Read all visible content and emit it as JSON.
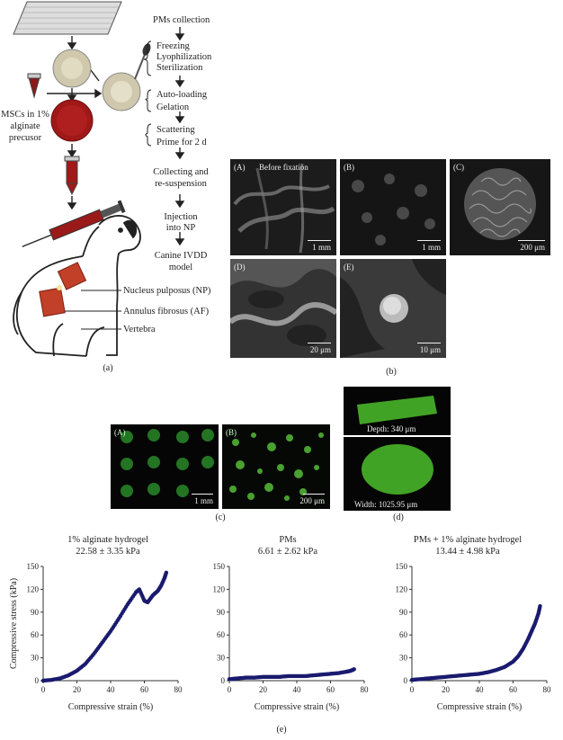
{
  "panel_a": {
    "label": "(a)",
    "steps": [
      "PMs collection",
      "Freezing",
      "Lyophilization",
      "Sterilization",
      "Auto-loading",
      "Gelation",
      "Scattering",
      "Prime for 2 d",
      "Collecting and",
      "re-suspension",
      "Injection",
      "into NP",
      "Canine IVDD",
      "model"
    ],
    "msc_text": [
      "MSCs in 1%",
      "alginate",
      "precusor"
    ],
    "anatomy": [
      "Nucleus pulposus (NP)",
      "Annulus fibrosus (AF)",
      "Vertebra"
    ]
  },
  "panel_b": {
    "label": "(b)",
    "images": [
      {
        "tag": "(A)",
        "title": "Before fixation",
        "scale": "1 mm"
      },
      {
        "tag": "(B)",
        "title": "",
        "scale": "1 mm"
      },
      {
        "tag": "(C)",
        "title": "",
        "scale": "200 μm"
      },
      {
        "tag": "(D)",
        "title": "",
        "scale": "20 μm"
      },
      {
        "tag": "(E)",
        "title": "",
        "scale": "10 μm"
      }
    ]
  },
  "panel_c": {
    "label": "(c)",
    "images": [
      {
        "tag": "(A)",
        "scale": "1 mm"
      },
      {
        "tag": "(B)",
        "scale": "200 μm"
      }
    ]
  },
  "panel_d": {
    "label": "(d)",
    "depth": "Depth: 340 μm",
    "width": "Width: 1025.95 μm"
  },
  "panel_e": {
    "label": "(e)"
  },
  "chart_data": [
    {
      "type": "scatter",
      "title": "1% alginate hydrogel",
      "subtitle": "22.58 ± 3.35 kPa",
      "xlabel": "Compressive strain (%)",
      "ylabel": "Compressive stress (kPa)",
      "xlim": [
        0,
        80
      ],
      "ylim": [
        0,
        150
      ],
      "xticks": [
        0,
        20,
        40,
        60,
        80
      ],
      "yticks": [
        0,
        30,
        60,
        90,
        120,
        150
      ],
      "color": "#1a1a6e",
      "x": [
        0,
        5,
        10,
        15,
        20,
        25,
        30,
        35,
        40,
        45,
        50,
        55,
        57,
        60,
        62,
        65,
        68,
        70,
        72,
        73
      ],
      "y": [
        0,
        1,
        3,
        7,
        13,
        22,
        35,
        50,
        65,
        82,
        100,
        116,
        120,
        105,
        103,
        112,
        118,
        125,
        135,
        142
      ]
    },
    {
      "type": "scatter",
      "title": "PMs",
      "subtitle": "6.61 ± 2.62 kPa",
      "xlabel": "Compressive strain (%)",
      "ylabel": "",
      "xlim": [
        0,
        80
      ],
      "ylim": [
        0,
        150
      ],
      "xticks": [
        0,
        20,
        40,
        60,
        80
      ],
      "yticks": [
        0,
        30,
        60,
        90,
        120,
        150
      ],
      "color": "#1a1a6e",
      "x": [
        0,
        5,
        10,
        15,
        20,
        25,
        30,
        35,
        40,
        45,
        50,
        55,
        60,
        65,
        70,
        72,
        74
      ],
      "y": [
        2,
        3,
        4,
        4,
        5,
        5,
        5,
        6,
        6,
        6,
        7,
        8,
        9,
        10,
        12,
        13,
        15
      ]
    },
    {
      "type": "scatter",
      "title": "PMs + 1% alginate hydrogel",
      "subtitle": "13.44 ± 4.98 kPa",
      "xlabel": "Compressive strain (%)",
      "ylabel": "",
      "xlim": [
        0,
        80
      ],
      "ylim": [
        0,
        150
      ],
      "xticks": [
        0,
        20,
        40,
        60,
        80
      ],
      "yticks": [
        0,
        30,
        60,
        90,
        120,
        150
      ],
      "color": "#1a1a6e",
      "x": [
        0,
        5,
        10,
        15,
        20,
        25,
        30,
        35,
        40,
        45,
        50,
        55,
        60,
        63,
        66,
        69,
        71,
        73,
        75,
        76
      ],
      "y": [
        1,
        2,
        3,
        4,
        5,
        6,
        7,
        8,
        9,
        11,
        14,
        18,
        25,
        32,
        42,
        55,
        65,
        75,
        88,
        98
      ]
    }
  ]
}
